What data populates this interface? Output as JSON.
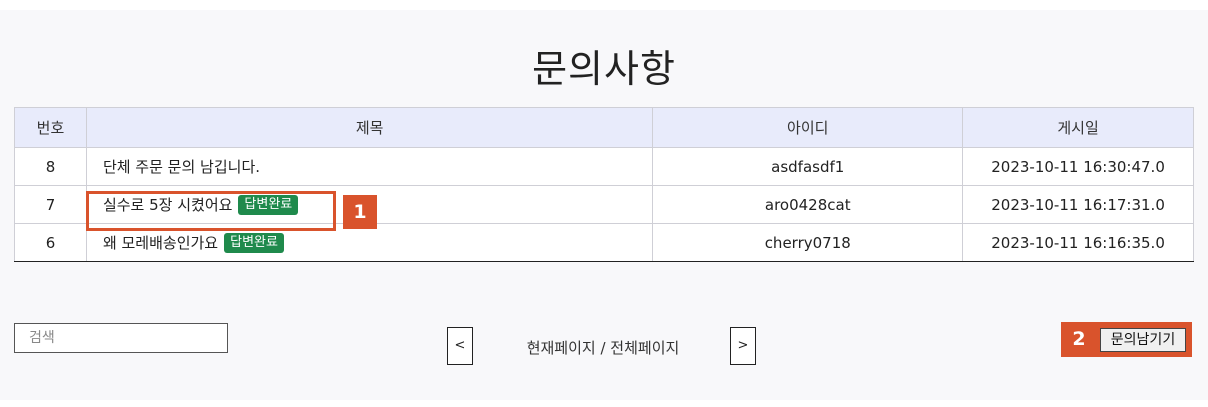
{
  "page": {
    "title": "문의사항"
  },
  "table": {
    "headers": {
      "no": "번호",
      "subject": "제목",
      "user_id": "아이디",
      "date": "게시일"
    },
    "rows": [
      {
        "no": "8",
        "subject": "단체 주문 문의 남깁니다.",
        "badge": "",
        "user_id": "asdfasdf1",
        "date": "2023-10-11 16:30:47.0"
      },
      {
        "no": "7",
        "subject": "실수로 5장 시켰어요",
        "badge": "답변완료",
        "user_id": "aro0428cat",
        "date": "2023-10-11 16:17:31.0"
      },
      {
        "no": "6",
        "subject": "왜 모레배송인가요",
        "badge": "답변완료",
        "user_id": "cherry0718",
        "date": "2023-10-11 16:16:35.0"
      }
    ]
  },
  "search": {
    "placeholder": "검색"
  },
  "pagination": {
    "prev_label": "<",
    "next_label": ">",
    "info": "현재페이지 / 전체페이지"
  },
  "write_button": {
    "label": "문의남기기"
  },
  "markers": {
    "one": "1",
    "two": "2"
  },
  "colors": {
    "accent": "#d9532c",
    "badge": "#1f8a4c",
    "header_bg": "#e8ebfb"
  }
}
